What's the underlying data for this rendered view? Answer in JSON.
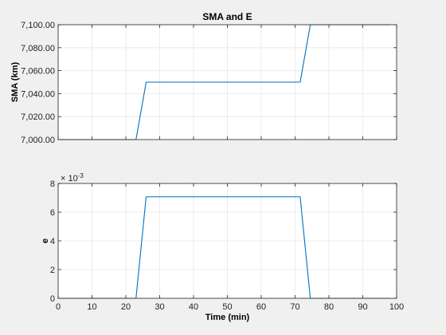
{
  "chart_data": [
    {
      "type": "line",
      "title": "SMA and E",
      "xlabel": "",
      "ylabel": "SMA (km)",
      "xlim": [
        0,
        100
      ],
      "ylim": [
        7000,
        7100
      ],
      "grid": true,
      "xtick_labels_visible": false,
      "yticks": [
        7000,
        7020,
        7040,
        7060,
        7080,
        7100
      ],
      "ytick_labels": [
        "7,000.00",
        "7,020.00",
        "7,040.00",
        "7,060.00",
        "7,080.00",
        "7,100.00"
      ],
      "line_color": "#0072bd",
      "series": [
        {
          "x": [
            0,
            23,
            26,
            71.5,
            74.5,
            98
          ],
          "y": [
            7000,
            7000,
            7050,
            7050,
            7100,
            7100
          ]
        }
      ]
    },
    {
      "type": "line",
      "title": "",
      "xlabel": "Time (min)",
      "ylabel": "e",
      "xlim": [
        0,
        100
      ],
      "ylim": [
        0,
        0.008
      ],
      "grid": true,
      "xticks": [
        0,
        10,
        20,
        30,
        40,
        50,
        60,
        70,
        80,
        90,
        100
      ],
      "xtick_labels": [
        "0",
        "10",
        "20",
        "30",
        "40",
        "50",
        "60",
        "70",
        "80",
        "90",
        "100"
      ],
      "yticks": [
        0,
        0.002,
        0.004,
        0.006,
        0.008
      ],
      "ytick_labels": [
        "0",
        "2",
        "4",
        "6",
        "8"
      ],
      "y_exponent_base": "× 10",
      "y_exponent_power": "-3",
      "line_color": "#0072bd",
      "series": [
        {
          "x": [
            0,
            23,
            26,
            71.5,
            74.5,
            98
          ],
          "y": [
            0,
            0,
            0.00707,
            0.00707,
            0,
            0
          ]
        }
      ]
    }
  ]
}
